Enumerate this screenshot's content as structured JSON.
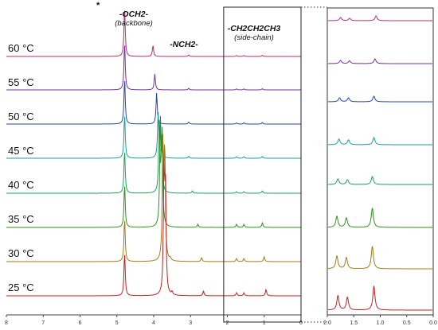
{
  "chart_data": {
    "type": "line",
    "title": "",
    "xlabel": "",
    "ylabel": "",
    "x_direction": "reversed",
    "main_panel": {
      "xlim": [
        8.0,
        0.0
      ],
      "tick_labels": [
        "8",
        "7",
        "6",
        "5",
        "4",
        "3",
        "2",
        "1",
        "0"
      ],
      "box_region_ppm": [
        2.1,
        0.0
      ]
    },
    "inset_panel": {
      "xlim": [
        2.0,
        0.0
      ],
      "tick_labels": [
        "2.0",
        "1.5",
        "1.0",
        "0.5",
        "0.0"
      ]
    },
    "solvent_marker": "*",
    "annotations": [
      {
        "main": "-OCH2-",
        "sub": "(backbone)"
      },
      {
        "main": "-NCH2-",
        "sub": ""
      },
      {
        "main": "-CH2CH2CH3",
        "sub": "(side-chain)"
      }
    ],
    "series": [
      {
        "name": "60 °C",
        "color": "#b0306a",
        "peaks": [
          {
            "ppm": 4.79,
            "h": 62
          },
          {
            "ppm": 4.02,
            "h": 14
          },
          {
            "ppm": 3.05,
            "h": 2
          },
          {
            "ppm": 1.75,
            "h": 1.2
          },
          {
            "ppm": 1.55,
            "h": 1.2
          },
          {
            "ppm": 1.05,
            "h": 1.5
          }
        ],
        "inset_peaks": [
          {
            "ppm": 1.75,
            "h": 4
          },
          {
            "ppm": 1.58,
            "h": 3
          },
          {
            "ppm": 1.08,
            "h": 6
          }
        ]
      },
      {
        "name": "55 °C",
        "color": "#7030a0",
        "peaks": [
          {
            "ppm": 4.79,
            "h": 60
          },
          {
            "ppm": 3.97,
            "h": 20
          },
          {
            "ppm": 3.05,
            "h": 2
          },
          {
            "ppm": 1.75,
            "h": 1.2
          },
          {
            "ppm": 1.55,
            "h": 1.2
          },
          {
            "ppm": 1.05,
            "h": 1.5
          }
        ],
        "inset_peaks": [
          {
            "ppm": 1.75,
            "h": 4
          },
          {
            "ppm": 1.58,
            "h": 3.5
          },
          {
            "ppm": 1.1,
            "h": 6
          }
        ]
      },
      {
        "name": "50 °C",
        "color": "#2845a6",
        "peaks": [
          {
            "ppm": 4.79,
            "h": 58
          },
          {
            "ppm": 3.92,
            "h": 40
          },
          {
            "ppm": 3.05,
            "h": 2.5
          },
          {
            "ppm": 1.75,
            "h": 1.5
          },
          {
            "ppm": 1.55,
            "h": 1.5
          },
          {
            "ppm": 1.05,
            "h": 2
          }
        ],
        "inset_peaks": [
          {
            "ppm": 1.77,
            "h": 5
          },
          {
            "ppm": 1.6,
            "h": 5
          },
          {
            "ppm": 1.12,
            "h": 7
          }
        ]
      },
      {
        "name": "45 °C",
        "color": "#1f9a9a",
        "peaks": [
          {
            "ppm": 4.79,
            "h": 56
          },
          {
            "ppm": 3.88,
            "h": 55
          },
          {
            "ppm": 3.82,
            "h": 40
          },
          {
            "ppm": 3.05,
            "h": 2.5
          },
          {
            "ppm": 1.75,
            "h": 2
          },
          {
            "ppm": 1.55,
            "h": 2
          },
          {
            "ppm": 1.05,
            "h": 2.5
          }
        ],
        "inset_peaks": [
          {
            "ppm": 1.78,
            "h": 7
          },
          {
            "ppm": 1.6,
            "h": 6
          },
          {
            "ppm": 1.12,
            "h": 9
          }
        ]
      },
      {
        "name": "40 °C",
        "color": "#1fa05a",
        "peaks": [
          {
            "ppm": 4.79,
            "h": 55
          },
          {
            "ppm": 3.85,
            "h": 90
          },
          {
            "ppm": 3.78,
            "h": 70
          },
          {
            "ppm": 2.95,
            "h": 3
          },
          {
            "ppm": 1.75,
            "h": 2
          },
          {
            "ppm": 1.55,
            "h": 2
          },
          {
            "ppm": 1.05,
            "h": 3
          }
        ],
        "inset_peaks": [
          {
            "ppm": 1.8,
            "h": 7
          },
          {
            "ppm": 1.62,
            "h": 6
          },
          {
            "ppm": 1.15,
            "h": 10
          }
        ]
      },
      {
        "name": "35 °C",
        "color": "#2f8f1f",
        "peaks": [
          {
            "ppm": 4.79,
            "h": 55
          },
          {
            "ppm": 3.82,
            "h": 130
          },
          {
            "ppm": 3.77,
            "h": 110
          },
          {
            "ppm": 2.8,
            "h": 4
          },
          {
            "ppm": 1.75,
            "h": 4
          },
          {
            "ppm": 1.55,
            "h": 4
          },
          {
            "ppm": 1.05,
            "h": 6
          }
        ],
        "inset_peaks": [
          {
            "ppm": 1.82,
            "h": 14
          },
          {
            "ppm": 1.64,
            "h": 12
          },
          {
            "ppm": 1.15,
            "h": 24
          }
        ]
      },
      {
        "name": "30 °C",
        "color": "#a07a1a",
        "peaks": [
          {
            "ppm": 4.79,
            "h": 55
          },
          {
            "ppm": 3.75,
            "h": 150
          },
          {
            "ppm": 3.7,
            "h": 140
          },
          {
            "ppm": 3.55,
            "h": 3
          },
          {
            "ppm": 2.7,
            "h": 5
          },
          {
            "ppm": 1.75,
            "h": 4
          },
          {
            "ppm": 1.55,
            "h": 4
          },
          {
            "ppm": 1.0,
            "h": 6
          }
        ],
        "inset_peaks": [
          {
            "ppm": 1.82,
            "h": 16
          },
          {
            "ppm": 1.64,
            "h": 14
          },
          {
            "ppm": 1.15,
            "h": 28
          }
        ]
      },
      {
        "name": "25 °C",
        "color": "#c02020",
        "peaks": [
          {
            "ppm": 4.79,
            "h": 55
          },
          {
            "ppm": 3.72,
            "h": 155
          },
          {
            "ppm": 3.68,
            "h": 130
          },
          {
            "ppm": 3.5,
            "h": 4
          },
          {
            "ppm": 2.65,
            "h": 6
          },
          {
            "ppm": 1.75,
            "h": 4
          },
          {
            "ppm": 1.55,
            "h": 4
          },
          {
            "ppm": 0.95,
            "h": 8
          }
        ],
        "inset_peaks": [
          {
            "ppm": 1.8,
            "h": 18
          },
          {
            "ppm": 1.62,
            "h": 16
          },
          {
            "ppm": 1.12,
            "h": 30
          }
        ]
      }
    ]
  }
}
